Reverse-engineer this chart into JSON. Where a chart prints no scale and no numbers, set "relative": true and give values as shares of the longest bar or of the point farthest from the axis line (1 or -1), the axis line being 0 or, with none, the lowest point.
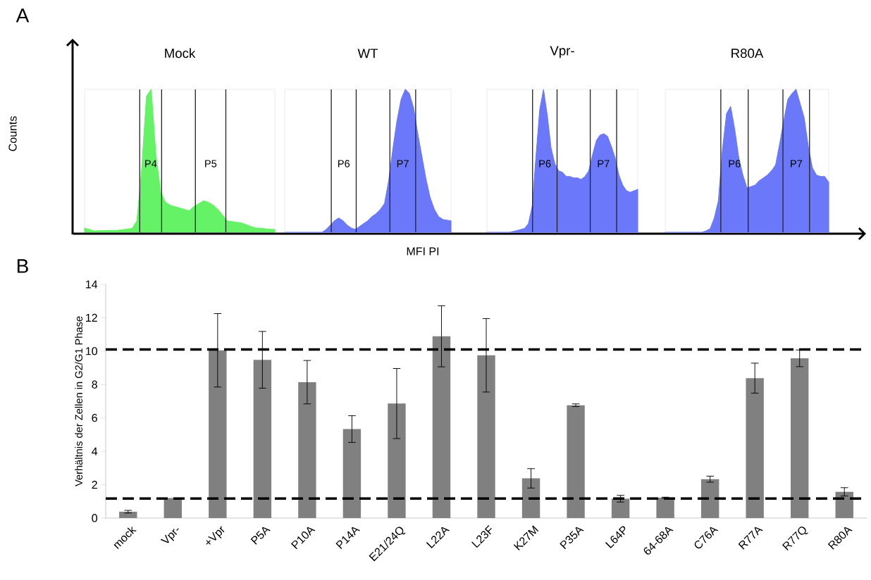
{
  "chart_data": [
    {
      "type": "area",
      "title": "Mock",
      "ylabel": "Counts",
      "annotations": [
        "P4",
        "P5",
        "A"
      ],
      "relative": true,
      "tick_labels": false,
      "color": "#66f266",
      "categories": [
        null,
        null,
        null,
        null,
        null,
        null,
        null,
        null,
        null,
        null,
        null,
        null,
        null,
        null,
        null,
        null,
        null,
        null,
        null,
        null,
        null,
        null,
        null,
        null,
        null,
        null,
        null,
        null,
        null,
        null,
        null,
        null,
        null,
        null,
        null,
        null,
        null,
        null,
        null,
        null,
        null
      ],
      "values": [
        0.03,
        0.02,
        0.01,
        0.011,
        0.012,
        0.013,
        0.014,
        0.015,
        0.018,
        0.023,
        0.027,
        0.08,
        0.44,
        0.95,
        1.0,
        0.54,
        0.28,
        0.21,
        0.19,
        0.18,
        0.17,
        0.16,
        0.15,
        0.18,
        0.2,
        0.22,
        0.21,
        0.19,
        0.16,
        0.12,
        0.08,
        0.075,
        0.07,
        0.065,
        0.053,
        0.04,
        0.03,
        0.028,
        0.025,
        0.022,
        0.02
      ]
    },
    {
      "type": "area",
      "title": "WT",
      "xlabel": "MFI PI",
      "annotations": [
        "P6",
        "P7"
      ],
      "relative": true,
      "tick_labels": false,
      "color": "#6b78fa",
      "categories": [
        null,
        null,
        null,
        null,
        null,
        null,
        null,
        null,
        null,
        null,
        null,
        null,
        null,
        null,
        null,
        null,
        null,
        null,
        null,
        null,
        null,
        null,
        null,
        null,
        null,
        null,
        null,
        null,
        null,
        null,
        null,
        null,
        null,
        null,
        null,
        null,
        null,
        null,
        null,
        null,
        null
      ],
      "values": [
        0,
        0,
        0,
        0,
        0,
        0,
        0,
        0,
        0,
        0,
        0.02,
        0.05,
        0.08,
        0.1,
        0.08,
        0.05,
        0.03,
        0.02,
        0.04,
        0.06,
        0.08,
        0.11,
        0.13,
        0.16,
        0.2,
        0.36,
        0.58,
        0.78,
        0.93,
        1.0,
        0.97,
        0.87,
        0.69,
        0.53,
        0.37,
        0.24,
        0.16,
        0.11,
        0.09,
        0.085,
        0.08
      ]
    },
    {
      "type": "area",
      "title": "Vpr-",
      "annotations": [
        "P6",
        "P7"
      ],
      "relative": true,
      "tick_labels": false,
      "color": "#6b78fa",
      "categories": [
        null,
        null,
        null,
        null,
        null,
        null,
        null,
        null,
        null,
        null,
        null,
        null,
        null,
        null,
        null,
        null,
        null,
        null,
        null,
        null,
        null,
        null,
        null,
        null,
        null,
        null,
        null,
        null,
        null,
        null,
        null,
        null,
        null,
        null,
        null,
        null,
        null,
        null,
        null,
        null,
        null
      ],
      "values": [
        0,
        0,
        0,
        0,
        0,
        0,
        0,
        0.006,
        0.012,
        0.02,
        0.027,
        0.06,
        0.18,
        0.53,
        0.86,
        1.0,
        0.82,
        0.59,
        0.48,
        0.43,
        0.42,
        0.39,
        0.39,
        0.38,
        0.38,
        0.37,
        0.39,
        0.43,
        0.54,
        0.64,
        0.68,
        0.69,
        0.67,
        0.6,
        0.52,
        0.4,
        0.33,
        0.29,
        0.28,
        0.29,
        0.3
      ]
    },
    {
      "type": "area",
      "title": "R80A",
      "annotations": [
        "P6",
        "P7"
      ],
      "relative": true,
      "tick_labels": false,
      "color": "#6b78fa",
      "categories": [
        null,
        null,
        null,
        null,
        null,
        null,
        null,
        null,
        null,
        null,
        null,
        null,
        null,
        null,
        null,
        null,
        null,
        null,
        null,
        null,
        null,
        null,
        null,
        null,
        null,
        null,
        null,
        null,
        null,
        null,
        null,
        null,
        null,
        null,
        null,
        null,
        null,
        null,
        null,
        null,
        null
      ],
      "values": [
        0,
        0,
        0,
        0,
        0,
        0,
        0,
        0,
        0,
        0,
        0.01,
        0.025,
        0.1,
        0.22,
        0.58,
        0.83,
        0.88,
        0.72,
        0.52,
        0.4,
        0.31,
        0.32,
        0.33,
        0.36,
        0.38,
        0.4,
        0.43,
        0.47,
        0.62,
        0.78,
        0.93,
        0.97,
        1.0,
        0.9,
        0.8,
        0.6,
        0.45,
        0.4,
        0.39,
        0.39,
        0.35
      ]
    },
    {
      "type": "bar",
      "ylabel": "Verhältnis der Zellen in  G2/G1 Phase",
      "annotations": [
        "B"
      ],
      "color": "#808080",
      "categories": [
        "mock",
        "Vpr-",
        "+Vpr",
        "P5A",
        "P10A",
        "P14A",
        "E21/24Q",
        "L22A",
        "L23F",
        "K27M",
        "P35A",
        "L64P",
        "64-68A",
        "C76A",
        "R77A",
        "R77Q",
        "R80A"
      ],
      "values": [
        0.38,
        1.2,
        10.05,
        9.48,
        8.14,
        5.33,
        6.86,
        10.89,
        9.75,
        2.38,
        6.76,
        1.16,
        1.22,
        2.33,
        8.38,
        9.57,
        1.57
      ],
      "errors": [
        0.08,
        null,
        2.2,
        1.7,
        1.3,
        0.8,
        2.1,
        1.83,
        2.2,
        0.58,
        0.08,
        0.2,
        0.03,
        0.18,
        0.9,
        0.5,
        0.25
      ],
      "ylim": [
        0,
        14
      ],
      "yticks": [
        0,
        2,
        4,
        6,
        8,
        10,
        12,
        14
      ],
      "ref_lines": [
        {
          "axis": "y",
          "value": 10.1,
          "color": "#000000",
          "line_style": "dashed"
        },
        {
          "axis": "y",
          "value": 1.17,
          "color": "#000000",
          "line_style": "dashed"
        }
      ]
    }
  ]
}
